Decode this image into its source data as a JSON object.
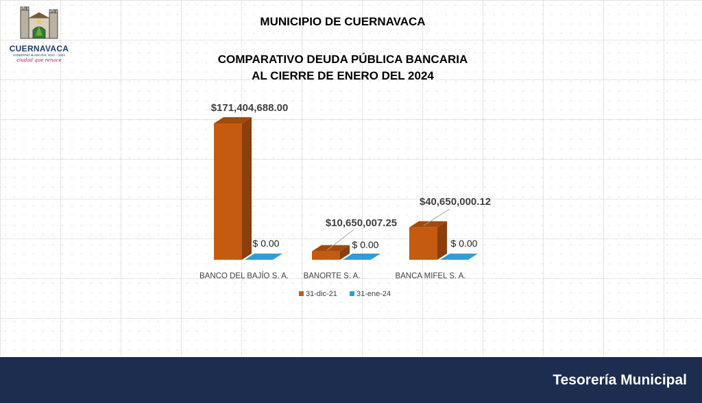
{
  "header": {
    "municipio": "MUNICIPIO DE CUERNAVACA",
    "title_line1": "COMPARATIVO DEUDA PÚBLICA BANCARIA",
    "title_line2": "AL CIERRE DE ENERO DEL 2024"
  },
  "logo": {
    "name": "CUERNAVACA",
    "subtitle": "GOBIERNO MUNICIPAL 2022 – 2024",
    "slogan": "ciudad que renace"
  },
  "footer": {
    "text": "Tesorería Municipal"
  },
  "chart_data": {
    "type": "bar",
    "title": "COMPARATIVO DEUDA PÚBLICA BANCARIA AL CIERRE DE ENERO DEL 2024",
    "categories": [
      "BANCO DEL BAJÍO S. A.",
      "BANORTE S. A.",
      "BANCA MIFEL S. A."
    ],
    "series": [
      {
        "name": "31-dic-21",
        "values": [
          171404688.0,
          10650007.25,
          40650000.12
        ],
        "labels": [
          "$171,404,688.00",
          "$10,650,007.25",
          "$40,650,000.12"
        ],
        "color": "#c55a11"
      },
      {
        "name": "31-ene-24",
        "values": [
          0,
          0,
          0
        ],
        "labels": [
          "$ 0.00",
          "$ 0.00",
          "$ 0.00"
        ],
        "color": "#2e9fd3"
      }
    ],
    "ylim": [
      0,
      171404688.0
    ],
    "legend": "bottom",
    "style": "3d-column"
  }
}
